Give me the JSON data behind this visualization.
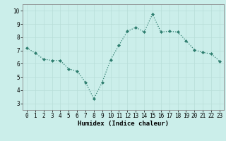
{
  "x": [
    0,
    1,
    2,
    3,
    4,
    5,
    6,
    7,
    8,
    9,
    10,
    11,
    12,
    13,
    14,
    15,
    16,
    17,
    18,
    19,
    20,
    21,
    22,
    23
  ],
  "y": [
    7.2,
    6.8,
    6.35,
    6.25,
    6.25,
    5.6,
    5.45,
    4.6,
    3.35,
    4.6,
    6.3,
    7.4,
    8.45,
    8.75,
    8.4,
    9.75,
    8.4,
    8.45,
    8.4,
    7.75,
    7.05,
    6.85,
    6.75,
    6.2
  ],
  "line_color": "#2d7d6e",
  "marker": "D",
  "markersize": 2.0,
  "linewidth": 0.9,
  "background_color": "#cbeeea",
  "grid_color": "#b8ddd8",
  "xlabel": "Humidex (Indice chaleur)",
  "ylabel": "",
  "xlim": [
    -0.5,
    23.5
  ],
  "ylim": [
    2.5,
    10.5
  ],
  "yticks": [
    3,
    4,
    5,
    6,
    7,
    8,
    9,
    10
  ],
  "xticks": [
    0,
    1,
    2,
    3,
    4,
    5,
    6,
    7,
    8,
    9,
    10,
    11,
    12,
    13,
    14,
    15,
    16,
    17,
    18,
    19,
    20,
    21,
    22,
    23
  ],
  "xlabel_fontsize": 6.5,
  "tick_fontsize": 5.5
}
